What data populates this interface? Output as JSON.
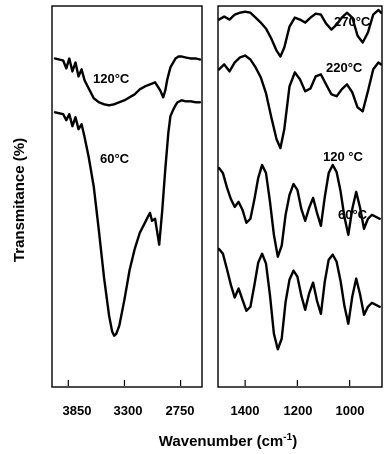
{
  "chart_data": [
    {
      "type": "line",
      "panel": "left",
      "xlabel": "Wavenumber (cm-1)",
      "ylabel": "Transmitance (%)",
      "x_direction": "decreasing",
      "xlim": [
        4000,
        2550
      ],
      "ticks": [
        3850,
        3300,
        2750
      ],
      "ylim": [
        0,
        100
      ],
      "grid": false,
      "annotations": [
        "120°C",
        "60°C"
      ],
      "series": [
        {
          "name": "120°C",
          "x": [
            3980,
            3900,
            3870,
            3840,
            3810,
            3780,
            3750,
            3720,
            3690,
            3650,
            3600,
            3550,
            3500,
            3450,
            3400,
            3350,
            3300,
            3250,
            3200,
            3150,
            3100,
            3050,
            3000,
            2950,
            2920,
            2900,
            2880,
            2850,
            2800,
            2770,
            2740,
            2700,
            2650,
            2600,
            2560
          ],
          "y": [
            85.4,
            84.8,
            82.4,
            85.4,
            81.5,
            84.2,
            80.0,
            82.1,
            78.8,
            76.4,
            73.4,
            72.2,
            71.6,
            71.3,
            71.6,
            72.2,
            72.8,
            73.7,
            74.6,
            76.1,
            77.0,
            77.6,
            78.2,
            75.8,
            73.7,
            75.8,
            79.1,
            82.7,
            85.4,
            86.0,
            86.0,
            85.7,
            85.4,
            85.4,
            85.1
          ]
        },
        {
          "name": "60°C",
          "x": [
            3980,
            3900,
            3870,
            3840,
            3810,
            3780,
            3750,
            3720,
            3690,
            3650,
            3600,
            3550,
            3500,
            3450,
            3420,
            3400,
            3380,
            3350,
            3300,
            3250,
            3200,
            3150,
            3100,
            3070,
            3050,
            3030,
            3000,
            2960,
            2930,
            2900,
            2870,
            2850,
            2820,
            2800,
            2780,
            2760,
            2740,
            2700,
            2650,
            2600,
            2560
          ],
          "y": [
            69.2,
            68.6,
            66.8,
            68.6,
            65.0,
            67.7,
            64.1,
            65.6,
            61.7,
            55.7,
            46.7,
            33.5,
            19.5,
            7.9,
            3.1,
            1.9,
            2.5,
            4.9,
            12.7,
            21.7,
            28.0,
            32.9,
            35.9,
            37.7,
            38.9,
            36.5,
            37.1,
            29.3,
            39.5,
            52.1,
            62.9,
            68.0,
            70.1,
            71.3,
            72.2,
            72.5,
            72.8,
            72.5,
            72.5,
            72.2,
            72.2
          ]
        }
      ]
    },
    {
      "type": "line",
      "panel": "right",
      "xlabel": "Wavenumber (cm-1)",
      "x_direction": "decreasing",
      "xlim": [
        1500,
        880
      ],
      "ticks": [
        1400,
        1200,
        1000
      ],
      "ylim": [
        0,
        100
      ],
      "grid": false,
      "annotations": [
        "270°C",
        "220°C",
        "120 °C",
        "60°C"
      ],
      "series": [
        {
          "name": "270°C",
          "x": [
            1500,
            1480,
            1460,
            1440,
            1420,
            1400,
            1380,
            1360,
            1340,
            1320,
            1300,
            1280,
            1265,
            1250,
            1230,
            1210,
            1190,
            1170,
            1150,
            1130,
            1110,
            1090,
            1070,
            1050,
            1030,
            1010,
            990,
            970,
            950,
            930,
            910,
            890,
            880
          ],
          "y": [
            97.1,
            98.0,
            97.1,
            98.6,
            99.2,
            99.5,
            99.2,
            97.7,
            96.2,
            94.4,
            91.4,
            87.8,
            86.0,
            88.7,
            95.0,
            97.7,
            97.1,
            96.2,
            97.7,
            98.9,
            98.6,
            95.9,
            94.1,
            95.6,
            97.7,
            99.2,
            97.7,
            92.3,
            90.2,
            93.2,
            98.6,
            100.0,
            99.2
          ]
        },
        {
          "name": "220°C",
          "x": [
            1500,
            1480,
            1460,
            1440,
            1420,
            1400,
            1380,
            1360,
            1340,
            1320,
            1300,
            1280,
            1265,
            1250,
            1230,
            1210,
            1190,
            1170,
            1150,
            1130,
            1110,
            1090,
            1070,
            1050,
            1030,
            1010,
            990,
            970,
            950,
            930,
            910,
            890,
            880
          ],
          "y": [
            82.1,
            83.6,
            81.5,
            84.2,
            85.7,
            86.3,
            85.1,
            82.7,
            79.7,
            74.9,
            67.7,
            61.1,
            58.4,
            64.1,
            77.0,
            81.2,
            79.1,
            75.5,
            76.4,
            80.0,
            80.6,
            77.6,
            74.6,
            74.0,
            76.1,
            77.6,
            75.2,
            70.7,
            69.5,
            75.5,
            82.1,
            84.2,
            83.6
          ]
        },
        {
          "name": "120 °C",
          "x": [
            1500,
            1485,
            1470,
            1455,
            1440,
            1425,
            1410,
            1395,
            1380,
            1365,
            1350,
            1335,
            1320,
            1305,
            1290,
            1275,
            1260,
            1245,
            1230,
            1215,
            1200,
            1185,
            1170,
            1155,
            1140,
            1125,
            1110,
            1095,
            1080,
            1065,
            1050,
            1035,
            1020,
            1005,
            990,
            975,
            960,
            945,
            930,
            915,
            900,
            885
          ],
          "y": [
            52.4,
            50.9,
            46.7,
            43.1,
            40.7,
            42.2,
            39.8,
            35.9,
            37.1,
            42.8,
            49.4,
            53.3,
            50.9,
            42.2,
            32.3,
            25.7,
            29.0,
            38.3,
            44.3,
            47.6,
            45.8,
            40.1,
            36.5,
            40.4,
            43.4,
            38.9,
            35.0,
            43.7,
            50.9,
            53.3,
            51.2,
            45.5,
            37.7,
            32.3,
            40.1,
            45.2,
            40.4,
            34.1,
            37.1,
            38.3,
            37.7,
            37.1
          ]
        },
        {
          "name": "60°C",
          "x": [
            1500,
            1485,
            1470,
            1455,
            1440,
            1425,
            1410,
            1395,
            1380,
            1365,
            1350,
            1335,
            1320,
            1305,
            1290,
            1275,
            1260,
            1245,
            1230,
            1215,
            1200,
            1185,
            1170,
            1155,
            1140,
            1125,
            1110,
            1095,
            1080,
            1065,
            1050,
            1035,
            1020,
            1005,
            990,
            975,
            960,
            945,
            930,
            915,
            900,
            885
          ],
          "y": [
            28.0,
            26.6,
            22.1,
            17.3,
            13.4,
            16.1,
            12.7,
            9.4,
            10.6,
            17.0,
            23.9,
            26.6,
            23.6,
            14.0,
            2.5,
            -2.2,
            1.0,
            12.1,
            18.8,
            21.5,
            19.7,
            14.0,
            9.7,
            14.6,
            17.9,
            12.4,
            8.5,
            18.2,
            24.8,
            26.3,
            24.2,
            18.5,
            10.9,
            5.5,
            13.7,
            19.1,
            14.3,
            8.2,
            10.6,
            11.8,
            11.2,
            10.6
          ]
        }
      ]
    }
  ],
  "axes": {
    "ylabel": "Transmitance (%)",
    "xlabel_main": "Wavenumber (cm",
    "xlabel_sup": "-1",
    "xlabel_end": ")"
  },
  "left_panel": {
    "tick_labels": [
      "3850",
      "3300",
      "2750"
    ],
    "annotations": [
      "120°C",
      "60°C"
    ]
  },
  "right_panel": {
    "tick_labels": [
      "1400",
      "1200",
      "1000"
    ],
    "annotations": [
      "270°C",
      "220°C",
      "120 °C",
      "60°C"
    ]
  }
}
